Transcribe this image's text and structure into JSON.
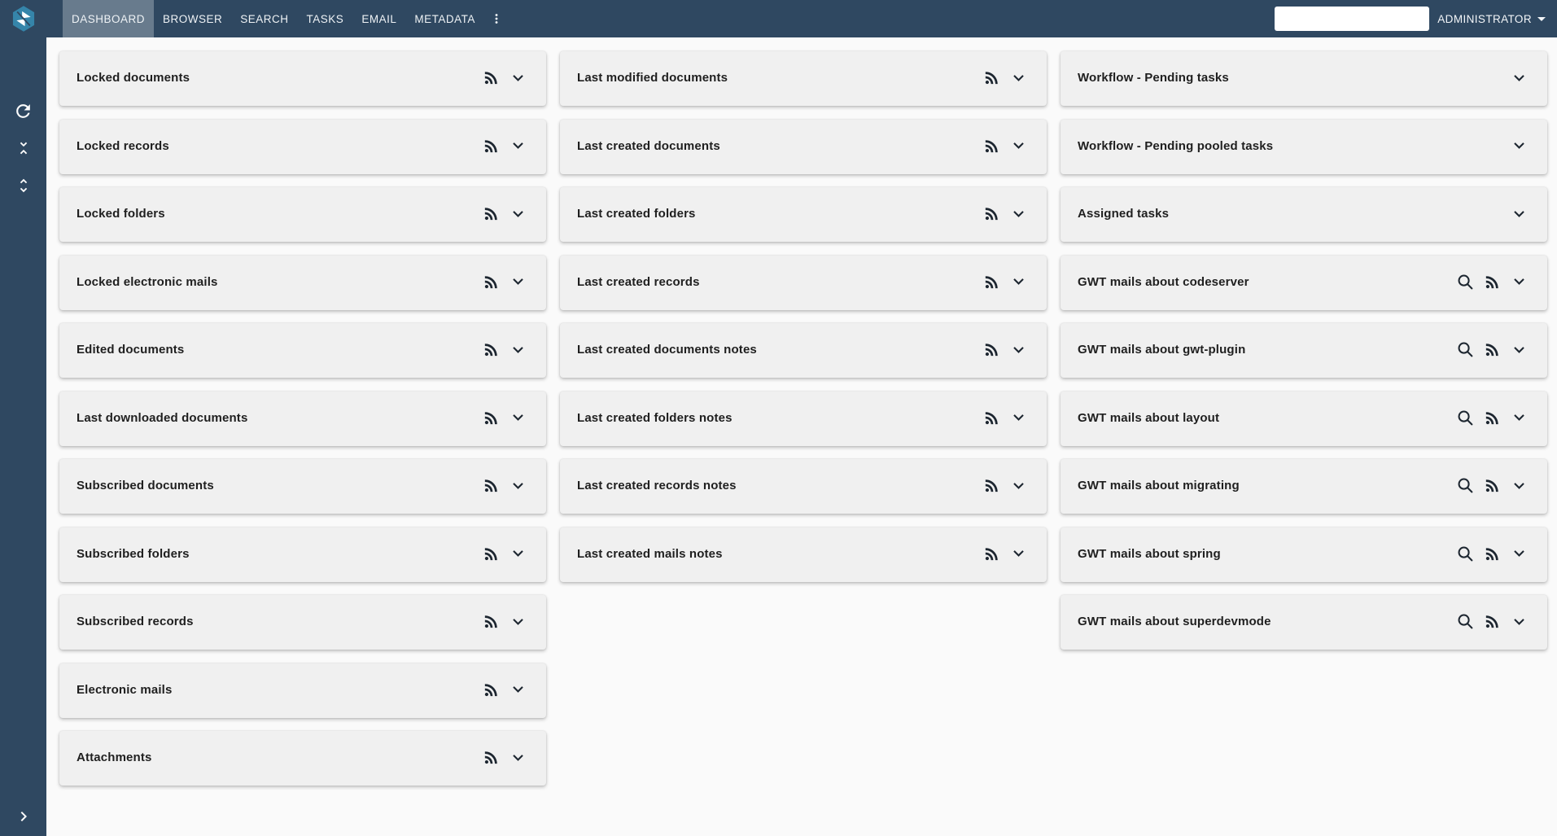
{
  "nav": {
    "logo_icon": "app-cube-logo-icon",
    "tabs": [
      {
        "label": "DASHBOARD",
        "active": true
      },
      {
        "label": "BROWSER",
        "active": false
      },
      {
        "label": "SEARCH",
        "active": false
      },
      {
        "label": "TASKS",
        "active": false
      },
      {
        "label": "EMAIL",
        "active": false
      },
      {
        "label": "METADATA",
        "active": false
      }
    ],
    "kebab_icon": "more-vert-icon",
    "search": {
      "value": "",
      "placeholder": ""
    },
    "user_label": "ADMINISTRATOR",
    "user_caret_icon": "caret-down-icon"
  },
  "sidebar": {
    "top_icons": [
      {
        "name": "refresh-icon",
        "glyph": "refresh"
      },
      {
        "name": "unfold-less-icon",
        "glyph": "unfold-less"
      },
      {
        "name": "unfold-more-icon",
        "glyph": "unfold-more"
      }
    ],
    "bottom_icon": {
      "name": "chevron-right-icon",
      "glyph": "chevron-right"
    }
  },
  "columns": [
    {
      "panels": [
        {
          "title": "Locked documents",
          "icons": [
            "rss-icon",
            "expand-icon"
          ]
        },
        {
          "title": "Locked records",
          "icons": [
            "rss-icon",
            "expand-icon"
          ]
        },
        {
          "title": "Locked folders",
          "icons": [
            "rss-icon",
            "expand-icon"
          ]
        },
        {
          "title": "Locked electronic mails",
          "icons": [
            "rss-icon",
            "expand-icon"
          ]
        },
        {
          "title": "Edited documents",
          "icons": [
            "rss-icon",
            "expand-icon"
          ]
        },
        {
          "title": "Last downloaded documents",
          "icons": [
            "rss-icon",
            "expand-icon"
          ]
        },
        {
          "title": "Subscribed documents",
          "icons": [
            "rss-icon",
            "expand-icon"
          ]
        },
        {
          "title": "Subscribed folders",
          "icons": [
            "rss-icon",
            "expand-icon"
          ]
        },
        {
          "title": "Subscribed records",
          "icons": [
            "rss-icon",
            "expand-icon"
          ]
        },
        {
          "title": "Electronic mails",
          "icons": [
            "rss-icon",
            "expand-icon"
          ]
        },
        {
          "title": "Attachments",
          "icons": [
            "rss-icon",
            "expand-icon"
          ]
        }
      ]
    },
    {
      "panels": [
        {
          "title": "Last modified documents",
          "icons": [
            "rss-icon",
            "expand-icon"
          ]
        },
        {
          "title": "Last created documents",
          "icons": [
            "rss-icon",
            "expand-icon"
          ]
        },
        {
          "title": "Last created folders",
          "icons": [
            "rss-icon",
            "expand-icon"
          ]
        },
        {
          "title": "Last created records",
          "icons": [
            "rss-icon",
            "expand-icon"
          ]
        },
        {
          "title": "Last created documents notes",
          "icons": [
            "rss-icon",
            "expand-icon"
          ]
        },
        {
          "title": "Last created folders notes",
          "icons": [
            "rss-icon",
            "expand-icon"
          ]
        },
        {
          "title": "Last created records notes",
          "icons": [
            "rss-icon",
            "expand-icon"
          ]
        },
        {
          "title": "Last created mails notes",
          "icons": [
            "rss-icon",
            "expand-icon"
          ]
        }
      ]
    },
    {
      "panels": [
        {
          "title": "Workflow - Pending tasks",
          "icons": [
            "expand-icon"
          ]
        },
        {
          "title": "Workflow - Pending pooled tasks",
          "icons": [
            "expand-icon"
          ]
        },
        {
          "title": "Assigned tasks",
          "icons": [
            "expand-icon"
          ]
        },
        {
          "title": "GWT mails about codeserver",
          "icons": [
            "search-icon",
            "rss-icon",
            "expand-icon"
          ]
        },
        {
          "title": "GWT mails about gwt-plugin",
          "icons": [
            "search-icon",
            "rss-icon",
            "expand-icon"
          ]
        },
        {
          "title": "GWT mails about layout",
          "icons": [
            "search-icon",
            "rss-icon",
            "expand-icon"
          ]
        },
        {
          "title": "GWT mails about migrating",
          "icons": [
            "search-icon",
            "rss-icon",
            "expand-icon"
          ]
        },
        {
          "title": "GWT mails about spring",
          "icons": [
            "search-icon",
            "rss-icon",
            "expand-icon"
          ]
        },
        {
          "title": "GWT mails about superdevmode",
          "icons": [
            "search-icon",
            "rss-icon",
            "expand-icon"
          ]
        }
      ]
    }
  ],
  "colors": {
    "navbar_bg": "#2f4861",
    "active_tab_overlay": "rgba(255,255,255,0.28)",
    "page_bg": "#fafafa",
    "panel_bg": "#f0f0f0",
    "panel_title": "#1f1f1f",
    "panel_icon": "#1d2630",
    "logo_teal": "#3585aa",
    "nav_text": "#eef2f5"
  }
}
